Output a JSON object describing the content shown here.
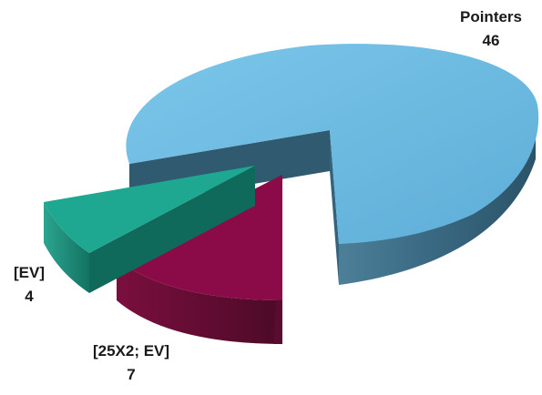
{
  "chart_data": {
    "type": "pie",
    "style": "3d-exploded",
    "title": "",
    "slices": [
      {
        "label": "Pointers",
        "value": 46,
        "color": "#6bb8df"
      },
      {
        "label": "[25X2; EV]",
        "value": 7,
        "color": "#8a0b47"
      },
      {
        "label": "[EV]",
        "value": 4,
        "color": "#1ea891"
      }
    ]
  }
}
